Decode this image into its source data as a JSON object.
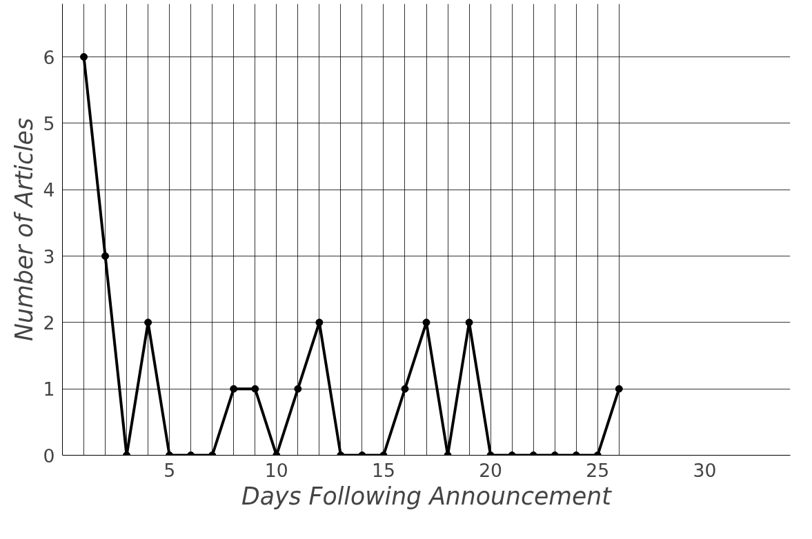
{
  "chart_data": {
    "type": "line",
    "xlabel": "Days Following Announcement",
    "ylabel": "Number of Articles",
    "x": [
      1,
      2,
      3,
      4,
      5,
      6,
      7,
      8,
      9,
      10,
      11,
      12,
      13,
      14,
      15,
      16,
      17,
      18,
      19,
      20,
      21,
      22,
      23,
      24,
      25,
      26
    ],
    "series": [
      {
        "color": "#000000",
        "values": [
          6,
          3,
          0,
          2,
          0,
          0,
          0,
          1,
          1,
          0,
          1,
          2,
          0,
          0,
          0,
          1,
          2,
          0,
          2,
          0,
          0,
          0,
          0,
          0,
          0,
          1
        ]
      }
    ],
    "xlim": [
      0,
      34
    ],
    "ylim": [
      0,
      6.8
    ],
    "xticks": [
      5,
      10,
      15,
      20,
      25,
      30
    ],
    "yticks": [
      0,
      1,
      2,
      3,
      4,
      5,
      6
    ],
    "grid": true,
    "marker": "circle",
    "line_style": "solid"
  }
}
